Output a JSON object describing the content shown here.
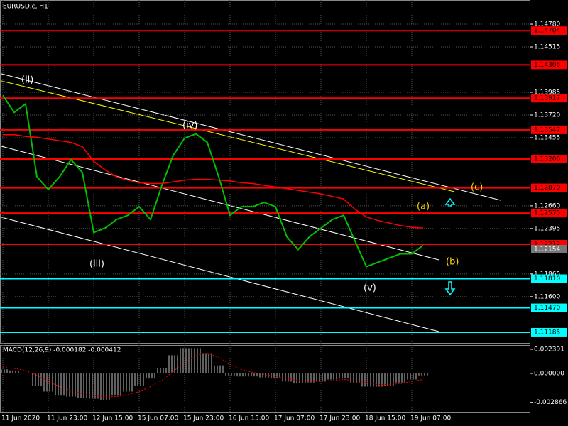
{
  "chart_data": {
    "type": "line",
    "title": "EURUSD.c, H1",
    "categories": [
      "11 Jun 2020",
      null,
      null,
      null,
      "11 Jun 23:00",
      null,
      null,
      null,
      "12 Jun 15:00",
      null,
      null,
      null,
      "15 Jun 07:00",
      null,
      null,
      null,
      "15 Jun 23:00",
      null,
      null,
      null,
      "16 Jun 15:00",
      null,
      null,
      null,
      "17 Jun 07:00",
      null,
      null,
      null,
      "17 Jun 23:00",
      null,
      null,
      null,
      "18 Jun 15:00",
      null,
      null,
      null,
      "19 Jun 07:00",
      null
    ],
    "series": [
      {
        "color": "#00c000",
        "values": [
          1.1395,
          1.1375,
          1.1385,
          1.13,
          1.1285,
          1.13,
          1.132,
          1.1305,
          1.1235,
          1.124,
          1.125,
          1.1255,
          1.1265,
          1.125,
          1.129,
          1.1325,
          1.1345,
          1.135,
          1.134,
          1.13,
          1.1255,
          1.1265,
          1.1265,
          1.127,
          1.1265,
          1.123,
          1.1215,
          1.123,
          1.124,
          1.125,
          1.1255,
          1.1225,
          1.1195,
          1.12,
          1.1205,
          1.121,
          1.121,
          1.122
        ]
      },
      {
        "color": "#ff0000",
        "values": [
          1.1349,
          1.1349,
          1.1347,
          1.1346,
          1.1344,
          1.1342,
          1.134,
          1.1335,
          1.1318,
          1.1308,
          1.13,
          1.1296,
          1.1293,
          1.1292,
          1.1292,
          1.1294,
          1.1296,
          1.1297,
          1.1297,
          1.1296,
          1.1295,
          1.1293,
          1.1292,
          1.129,
          1.1288,
          1.1286,
          1.1284,
          1.1282,
          1.128,
          1.1277,
          1.1274,
          1.1262,
          1.1253,
          1.1249,
          1.1246,
          1.1243,
          1.1241,
          1.124
        ]
      }
    ],
    "ylim": [
      1.11052,
      1.15062
    ],
    "yticks": [
      {
        "value": 1.1478,
        "label": "1.14780"
      },
      {
        "value": 1.14515,
        "label": "1.14515"
      },
      {
        "value": 1.13985,
        "label": "1.13985"
      },
      {
        "value": 1.1372,
        "label": "1.13720"
      },
      {
        "value": 1.13455,
        "label": "1.13455"
      },
      {
        "value": 1.1266,
        "label": "1.12660"
      },
      {
        "value": 1.12395,
        "label": "1.12395"
      },
      {
        "value": 1.11865,
        "label": "1.11865"
      },
      {
        "value": 1.116,
        "label": "1.11600"
      }
    ],
    "levels": [
      {
        "value": 1.14704,
        "label": "1.14704",
        "color": "#ff0000"
      },
      {
        "value": 1.14305,
        "label": "1.14305",
        "color": "#ff0000"
      },
      {
        "value": 1.13917,
        "label": "1.13917",
        "color": "#ff0000"
      },
      {
        "value": 1.13547,
        "label": "1.13547",
        "color": "#ff0000"
      },
      {
        "value": 1.13206,
        "label": "1.13206",
        "color": "#ff0000"
      },
      {
        "value": 1.1287,
        "label": "1.12870",
        "color": "#ff0000"
      },
      {
        "value": 1.12575,
        "label": "1.12575",
        "color": "#ff0000"
      },
      {
        "value": 1.12212,
        "label": "1.12212",
        "color": "#ff0000"
      },
      {
        "value": 1.1181,
        "label": "1.11810",
        "color": "#00ffff"
      },
      {
        "value": 1.1147,
        "label": "1.11470",
        "color": "#00ffff"
      },
      {
        "value": 1.11185,
        "label": "1.11185",
        "color": "#00ffff"
      }
    ],
    "price_label": {
      "value": 1.12154,
      "label": "1.12154"
    },
    "waves": [
      {
        "label": "(ii)",
        "color": "#ffffff"
      },
      {
        "label": "(iii)",
        "color": "#ffffff"
      },
      {
        "label": "(iv)",
        "color": "#ffffff"
      },
      {
        "label": "(v)",
        "color": "#ffffff"
      },
      {
        "label": "(a)",
        "color": "#ffd700"
      },
      {
        "label": "(b)",
        "color": "#ffd700"
      },
      {
        "label": "(c)",
        "color": "#ffd700"
      }
    ],
    "macd": {
      "title": "MACD(12,26,9) -0.000182 -0.000412",
      "ylim": [
        -0.0038,
        0.00274
      ],
      "yticks": [
        {
          "value": 0.002391,
          "label": "0.002391"
        },
        {
          "value": 0,
          "label": "0.000000"
        },
        {
          "value": -0.002866,
          "label": "-0.002866"
        }
      ],
      "values": [
        0.0004,
        0.0003,
        0,
        -0.0012,
        -0.0018,
        -0.0022,
        -0.0023,
        -0.0024,
        -0.0025,
        -0.0026,
        -0.0022,
        -0.0018,
        -0.0012,
        -0.0005,
        0.0005,
        0.0018,
        0.0025,
        0.0025,
        0.002,
        0.0008,
        -0.0002,
        -0.0003,
        -0.0003,
        -0.0004,
        -0.0005,
        -0.0008,
        -0.001,
        -0.0009,
        -0.0008,
        -0.0006,
        -0.0005,
        -0.0009,
        -0.0013,
        -0.0013,
        -0.0012,
        -0.0009,
        -0.0006,
        -0.0002
      ],
      "signal": [
        0.0006,
        0.0005,
        0.0003,
        -0.0002,
        -0.0008,
        -0.0013,
        -0.0017,
        -0.002,
        -0.0022,
        -0.0023,
        -0.0023,
        -0.0021,
        -0.0018,
        -0.0013,
        -0.0007,
        0.0002,
        0.0011,
        0.0018,
        0.002,
        0.0016,
        0.0009,
        0.0004,
        0.0001,
        -0.0001,
        -0.0003,
        -0.0005,
        -0.0007,
        -0.0008,
        -0.0008,
        -0.0007,
        -0.0006,
        -0.0007,
        -0.0009,
        -0.0011,
        -0.0011,
        -0.001,
        -0.0008,
        -0.0006
      ],
      "histogram_color": "#c0c0c0",
      "signal_color": "#ff0000"
    }
  }
}
